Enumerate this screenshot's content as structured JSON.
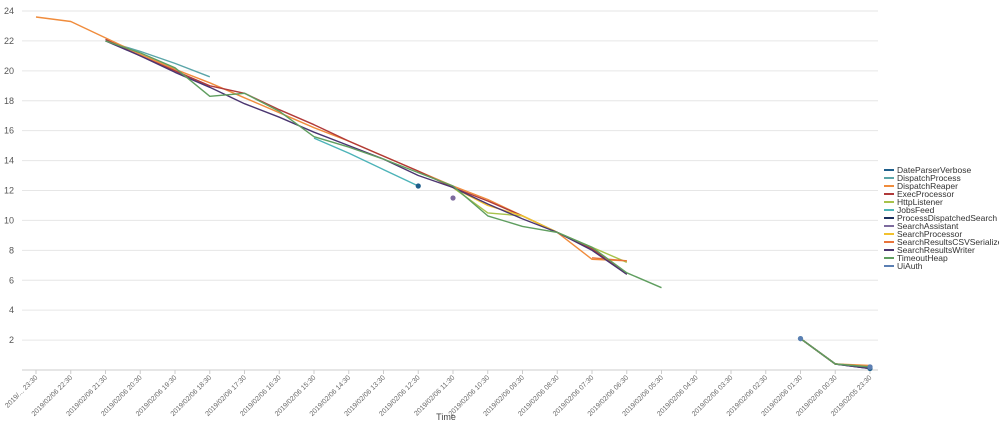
{
  "chart_data": {
    "type": "line",
    "xlabel": "Time",
    "ylabel": "",
    "ylim": [
      0,
      24
    ],
    "yticks": [
      2,
      4,
      6,
      8,
      10,
      12,
      14,
      16,
      18,
      20,
      22,
      24
    ],
    "grid": true,
    "legend_position": "right",
    "categories": [
      "2019/... 23:30",
      "2019/02/06 22:30",
      "2019/02/06 21:30",
      "2019/02/06 20:30",
      "2019/02/06 19:30",
      "2019/02/06 18:30",
      "2019/02/06 17:30",
      "2019/02/06 16:30",
      "2019/02/06 15:30",
      "2019/02/06 14:30",
      "2019/02/06 13:30",
      "2019/02/06 12:30",
      "2019/02/06 11:30",
      "2019/02/06 10:30",
      "2019/02/06 09:30",
      "2019/02/06 08:30",
      "2019/02/06 07:30",
      "2019/02/06 06:30",
      "2019/02/06 05:30",
      "2019/02/06 04:30",
      "2019/02/06 03:30",
      "2019/02/06 02:30",
      "2019/02/06 01:30",
      "2019/02/06 00:30",
      "2019/02/05 23:30"
    ],
    "series": [
      {
        "name": "DateParserVerbose",
        "color": "#1f5f8b",
        "values": [
          null,
          null,
          null,
          null,
          null,
          null,
          null,
          null,
          null,
          null,
          null,
          12.3,
          null,
          null,
          null,
          null,
          null,
          null,
          null,
          null,
          null,
          null,
          null,
          null,
          0.1
        ]
      },
      {
        "name": "DispatchProcess",
        "color": "#5aa5a8",
        "values": [
          null,
          null,
          22.0,
          21.3,
          20.5,
          19.6,
          null,
          null,
          null,
          null,
          null,
          null,
          null,
          null,
          null,
          null,
          null,
          null,
          null,
          null,
          null,
          null,
          2.1,
          null,
          0.2
        ]
      },
      {
        "name": "DispatchReaper",
        "color": "#f08c3c",
        "values": [
          23.6,
          23.3,
          22.2,
          21.1,
          20.1,
          19.2,
          18.2,
          17.2,
          16.2,
          15.3,
          14.3,
          13.3,
          12.3,
          11.4,
          10.3,
          9.2,
          7.4,
          7.3,
          null,
          null,
          null,
          null,
          2.1,
          0.4,
          0.3
        ]
      },
      {
        "name": "ExecProcessor",
        "color": "#b03a3a",
        "values": [
          null,
          null,
          22.1,
          21.0,
          20.0,
          19.0,
          18.5,
          17.4,
          16.4,
          15.3,
          14.3,
          13.3,
          12.2,
          11.3,
          10.3,
          9.2,
          8.1,
          6.4,
          null,
          null,
          null,
          null,
          2.1,
          0.4,
          0.2
        ]
      },
      {
        "name": "HttpListener",
        "color": "#a7c24a",
        "values": [
          null,
          null,
          null,
          null,
          null,
          null,
          null,
          null,
          null,
          null,
          null,
          null,
          12.2,
          10.5,
          10.3,
          9.2,
          8.2,
          7.2,
          null,
          null,
          null,
          null,
          2.1,
          0.4,
          0.2
        ]
      },
      {
        "name": "JobsFeed",
        "color": "#4cb3b8",
        "values": [
          null,
          null,
          null,
          null,
          null,
          null,
          null,
          null,
          15.5,
          14.5,
          13.4,
          12.3,
          null,
          null,
          null,
          null,
          null,
          null,
          null,
          null,
          null,
          null,
          2.1,
          0.4,
          0.2
        ]
      },
      {
        "name": "ProcessDispatchedSearch",
        "color": "#1b2f5e",
        "values": [
          null,
          null,
          null,
          null,
          null,
          null,
          null,
          null,
          null,
          null,
          null,
          null,
          null,
          null,
          null,
          null,
          null,
          null,
          null,
          null,
          null,
          null,
          2.1,
          0.4,
          0.1
        ]
      },
      {
        "name": "SearchAssistant",
        "color": "#7d6b9e",
        "values": [
          null,
          null,
          null,
          null,
          null,
          null,
          null,
          null,
          null,
          null,
          null,
          null,
          11.5,
          null,
          null,
          null,
          null,
          null,
          null,
          null,
          null,
          null,
          null,
          null,
          0.2
        ]
      },
      {
        "name": "SearchProcessor",
        "color": "#f2c12e",
        "values": [
          null,
          null,
          null,
          null,
          null,
          null,
          null,
          null,
          null,
          null,
          null,
          null,
          12.2,
          11.0,
          10.3,
          9.2,
          null,
          null,
          null,
          null,
          null,
          null,
          2.1,
          0.4,
          0.2
        ]
      },
      {
        "name": "SearchResultsCSVSerializer",
        "color": "#e8743b",
        "values": [
          null,
          null,
          null,
          null,
          null,
          null,
          null,
          null,
          null,
          null,
          null,
          null,
          null,
          null,
          null,
          null,
          7.5,
          7.3,
          null,
          null,
          null,
          null,
          2.1,
          0.4,
          0.2
        ]
      },
      {
        "name": "SearchResultsWriter",
        "color": "#4a3570",
        "values": [
          null,
          null,
          22.0,
          21.0,
          19.9,
          18.9,
          17.8,
          16.9,
          15.9,
          15.0,
          14.1,
          13.0,
          12.2,
          11.1,
          10.1,
          9.2,
          8.0,
          6.4,
          null,
          null,
          null,
          null,
          2.1,
          0.4,
          0.1
        ]
      },
      {
        "name": "TimeoutHeap",
        "color": "#5f9e5f",
        "values": [
          null,
          null,
          22.0,
          21.2,
          20.2,
          18.3,
          18.5,
          17.3,
          15.6,
          14.9,
          14.1,
          13.2,
          12.3,
          10.3,
          9.6,
          9.2,
          8.2,
          6.5,
          5.5,
          null,
          null,
          null,
          2.1,
          0.4,
          0.2
        ]
      },
      {
        "name": "UiAuth",
        "color": "#5b7fb3",
        "values": [
          null,
          null,
          null,
          null,
          null,
          null,
          null,
          null,
          null,
          null,
          null,
          null,
          null,
          null,
          null,
          null,
          null,
          null,
          null,
          null,
          null,
          null,
          2.1,
          null,
          0.2
        ]
      }
    ]
  }
}
